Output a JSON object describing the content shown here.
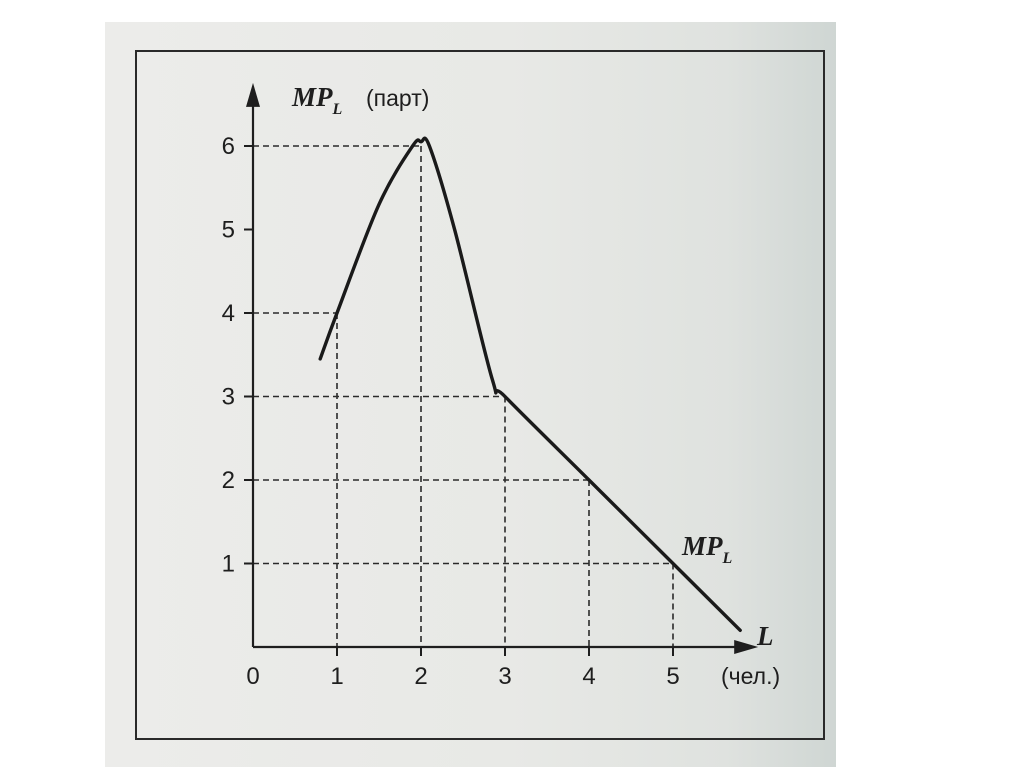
{
  "chart_data": {
    "type": "line",
    "title": "",
    "y_axis": {
      "symbol": "MP",
      "subscript": "L",
      "unit": "(парт)",
      "ticks": [
        "1",
        "2",
        "3",
        "4",
        "5",
        "6"
      ],
      "range": [
        0,
        6.6
      ]
    },
    "x_axis": {
      "symbol": "L",
      "unit": "(чел.)",
      "ticks": [
        "0",
        "1",
        "2",
        "3",
        "4",
        "5"
      ],
      "range": [
        0,
        5.8
      ]
    },
    "series": [
      {
        "name": "MP_L",
        "label": {
          "symbol": "MP",
          "subscript": "L"
        },
        "x": [
          0.8,
          1.0,
          1.5,
          1.9,
          2.0,
          2.1,
          2.4,
          2.85,
          3.0,
          4.0,
          5.0,
          5.8
        ],
        "y": [
          3.45,
          4.0,
          5.3,
          6.0,
          6.05,
          6.0,
          5.0,
          3.2,
          3.0,
          2.0,
          1.0,
          0.2
        ]
      }
    ],
    "guides": [
      {
        "x": 1,
        "y": 4
      },
      {
        "x": 2,
        "y": 6
      },
      {
        "x": 3,
        "y": 3
      },
      {
        "x": 4,
        "y": 2
      },
      {
        "x": 5,
        "y": 1
      }
    ],
    "grid": false,
    "guide_lines": "dashed"
  }
}
